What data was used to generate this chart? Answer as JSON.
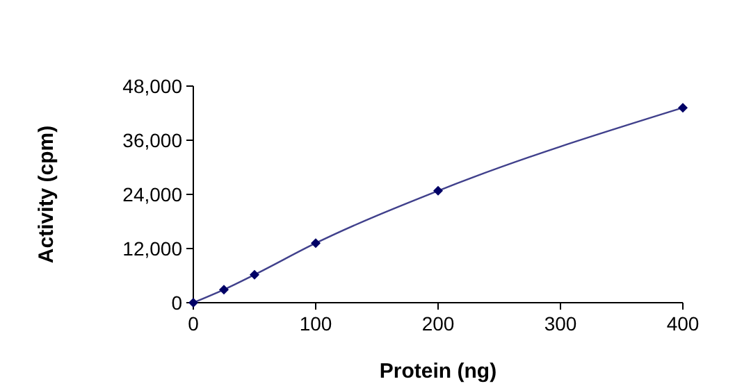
{
  "chart_data": {
    "type": "line",
    "xlabel": "Protein (ng)",
    "ylabel": "Activity (cpm)",
    "x": [
      0,
      25,
      50,
      100,
      200,
      400
    ],
    "series": [
      {
        "color": "#000066",
        "values": [
          0,
          2900,
          6200,
          13200,
          24800,
          43200
        ]
      }
    ],
    "xlim": [
      0,
      400
    ],
    "xticks": [
      0,
      100,
      200,
      300,
      400
    ],
    "ylim": [
      0,
      48000
    ],
    "yticks": [
      0,
      {
        "value": 12000,
        "label": "12,000"
      },
      {
        "value": 24000,
        "label": "24,000"
      },
      {
        "value": 36000,
        "label": "36,000"
      },
      {
        "value": 48000,
        "label": "48,000"
      }
    ],
    "grid": false,
    "marker": "diamond",
    "line_style": "solid"
  }
}
